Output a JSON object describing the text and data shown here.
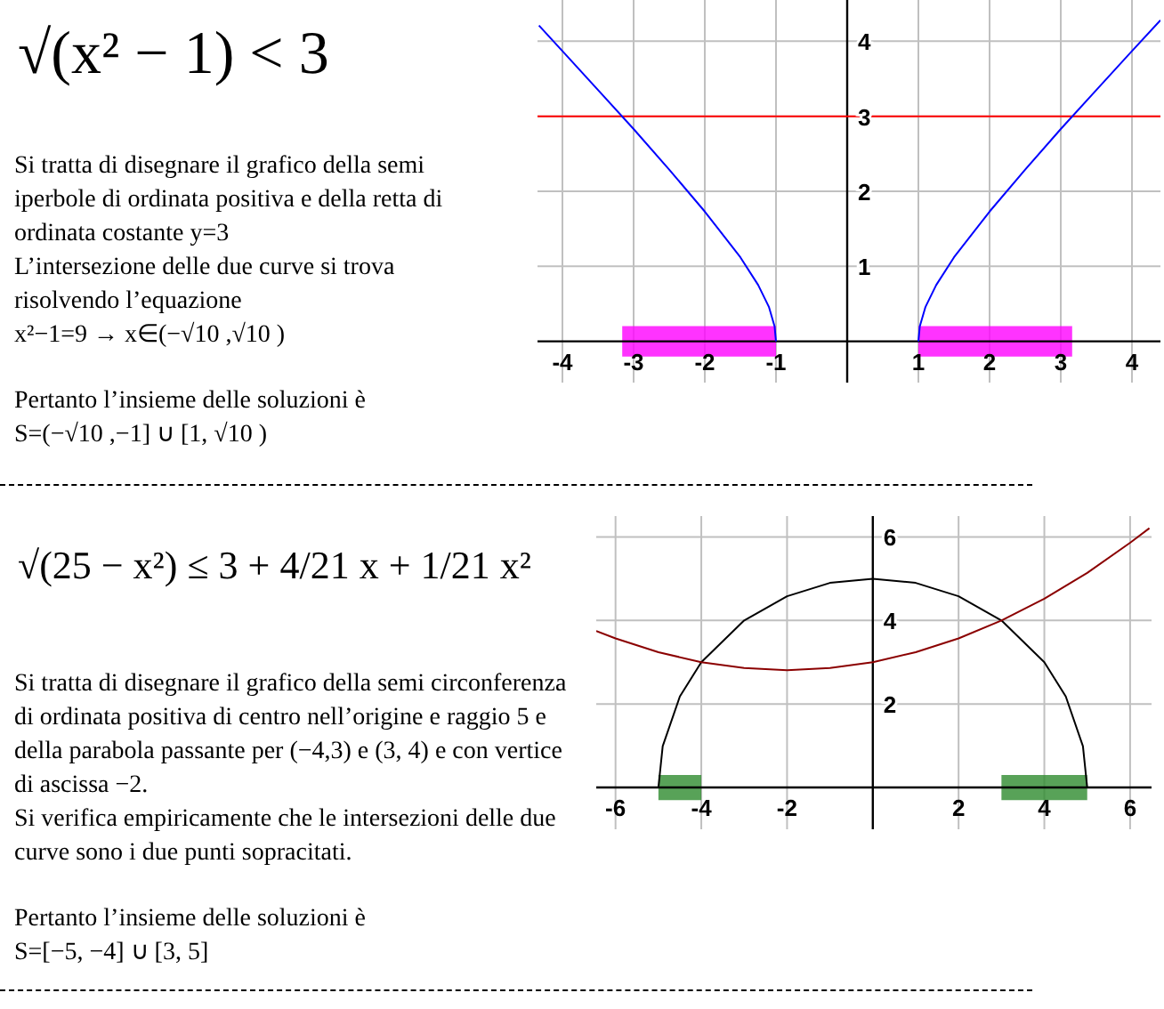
{
  "chart_data": [
    {
      "type": "line",
      "title": "√(x² − 1) < 3",
      "annotations": [
        "Si tratta di disegnare il grafico della semi iperbole di ordinata positiva e della retta di ordinata costante y=3",
        "L’intersezione delle due curve si trova risolvendo l’equazione",
        "x²−1=9 → x∈(−√10 ,√10 )",
        "Pertanto l’insieme delle soluzioni è",
        "S=(−√10 ,−1] ∪ [1, √10 )"
      ],
      "series": [
        {
          "color": "#0000ff",
          "x": [
            -4.33,
            -4,
            -3.5,
            -3,
            -2.5,
            -2,
            -1.5,
            -1.25,
            -1.1,
            -1.02,
            -1
          ],
          "values": [
            4.21,
            3.87,
            3.35,
            2.83,
            2.29,
            1.73,
            1.12,
            0.75,
            0.46,
            0.2,
            0
          ]
        },
        {
          "color": "#0000ff",
          "x": [
            1,
            1.02,
            1.1,
            1.25,
            1.5,
            2,
            2.5,
            3,
            3.5,
            4,
            4.4
          ],
          "values": [
            0,
            0.2,
            0.46,
            0.75,
            1.12,
            1.73,
            2.29,
            2.83,
            3.35,
            3.87,
            4.28
          ]
        }
      ],
      "ref_lines": [
        {
          "axis": "y",
          "value": 3,
          "color": "#ff0000"
        }
      ],
      "bands": [
        {
          "axis": "x",
          "from": -3.16,
          "to": -1,
          "color": "#ff00ff"
        },
        {
          "axis": "x",
          "from": 1,
          "to": 3.16,
          "color": "#ff00ff"
        }
      ],
      "xlim": [
        -4.35,
        4.4
      ],
      "xticks": [
        -4,
        -3,
        -2,
        -1,
        1,
        2,
        3,
        4
      ],
      "ylim": [
        -0.55,
        4.55
      ],
      "yticks": [
        1,
        2,
        3,
        4
      ],
      "grid": true
    },
    {
      "type": "line",
      "title": "√(25 − x²) ≤ 3 + 4/21 x + 1/21 x²",
      "annotations": [
        "Si tratta di disegnare il grafico della semi circonferenza di ordinata positiva di centro nell’origine e raggio 5 e della parabola passante per (−4,3) e (3, 4) e con vertice di ascissa −2.",
        "Si verifica empiricamente che le intersezioni delle due curve sono i due punti sopracitati.",
        "Pertanto l’insieme delle soluzioni è",
        "S=[−5, −4] ∪ [3, 5]"
      ],
      "series": [
        {
          "color": "#000000",
          "x": [
            -5,
            -4.9,
            -4.5,
            -4,
            -3,
            -2,
            -1,
            0,
            1,
            2,
            3,
            4,
            4.5,
            4.9,
            5
          ],
          "values": [
            0,
            0.99,
            2.18,
            3,
            4,
            4.58,
            4.9,
            5,
            4.9,
            4.58,
            4,
            3,
            2.18,
            0.99,
            0
          ]
        },
        {
          "color": "#8b0000",
          "x": [
            -6.45,
            -6,
            -5,
            -4,
            -3,
            -2,
            -1,
            0,
            1,
            2,
            3,
            4,
            5,
            6,
            6.45
          ],
          "values": [
            3.75,
            3.57,
            3.24,
            3,
            2.86,
            2.81,
            2.86,
            3,
            3.24,
            3.57,
            4,
            4.52,
            5.14,
            5.86,
            6.21
          ]
        }
      ],
      "bands": [
        {
          "axis": "x",
          "from": -5,
          "to": -4,
          "color": "#2e8b2e"
        },
        {
          "axis": "x",
          "from": 3,
          "to": 5,
          "color": "#2e8b2e"
        }
      ],
      "xlim": [
        -6.45,
        6.5
      ],
      "xticks": [
        -6,
        -4,
        -2,
        2,
        4,
        6
      ],
      "ylim": [
        -1,
        6.5
      ],
      "yticks": [
        2,
        4,
        6
      ],
      "grid": true
    }
  ]
}
